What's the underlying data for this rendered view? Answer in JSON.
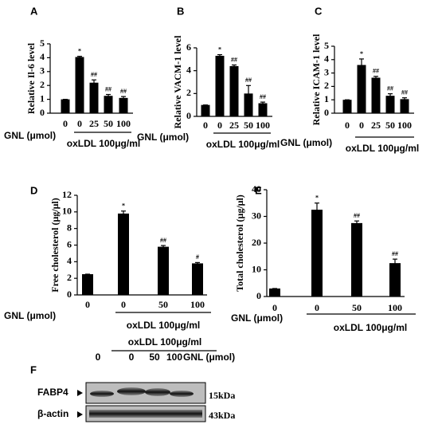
{
  "chart_data": [
    {
      "type": "bar",
      "panel": "A",
      "y_label": "Relative Il-6 level",
      "group_label": "GNL (μmol)",
      "treatment_label": "oxLDL 100μg/ml",
      "categories": [
        "0",
        "0",
        "25",
        "50",
        "100"
      ],
      "values": [
        1,
        4.05,
        2.2,
        1.25,
        1.1
      ],
      "errors": [
        0,
        0.05,
        0.2,
        0.1,
        0.1
      ],
      "markers": [
        null,
        "*",
        "##",
        "##",
        "##"
      ],
      "color": "#000000",
      "ylim": [
        0,
        5
      ],
      "yticks": [
        0,
        1,
        2,
        3,
        4,
        5
      ]
    },
    {
      "type": "bar",
      "panel": "B",
      "y_label": "Relative VACM-1 level",
      "group_label": "GNL (μmol)",
      "treatment_label": "oxLDL 100μg/ml",
      "categories": [
        "0",
        "0",
        "25",
        "50",
        "100"
      ],
      "values": [
        1,
        5.3,
        4.4,
        2.0,
        1.15
      ],
      "errors": [
        0,
        0.1,
        0.1,
        0.7,
        0.1
      ],
      "markers": [
        null,
        "*",
        "##",
        "##",
        "##"
      ],
      "color": "#000000",
      "ylim": [
        0,
        6
      ],
      "yticks": [
        0,
        2,
        4,
        6
      ]
    },
    {
      "type": "bar",
      "panel": "C",
      "y_label": "Relative ICAM-1 level",
      "group_label": "GNL (μmol)",
      "treatment_label": "oxLDL 100μg/ml",
      "categories": [
        "0",
        "0",
        "25",
        "50",
        "100"
      ],
      "values": [
        1,
        3.6,
        2.65,
        1.3,
        1.05
      ],
      "errors": [
        0,
        0.45,
        0.1,
        0.15,
        0.1
      ],
      "markers": [
        null,
        "*",
        "##",
        "##",
        "##"
      ],
      "color": "#000000",
      "ylim": [
        0,
        5
      ],
      "yticks": [
        0,
        1,
        2,
        3,
        4,
        5
      ]
    },
    {
      "type": "bar",
      "panel": "D",
      "y_label": "Free cholesterol  (μg/μl)",
      "group_label": "GNL (μmol)",
      "treatment_label": "oxLDL 100μg/ml",
      "categories": [
        "0",
        "0",
        "50",
        "100"
      ],
      "values": [
        2.5,
        9.8,
        5.8,
        3.8
      ],
      "errors": [
        0,
        0.3,
        0.15,
        0.1
      ],
      "markers": [
        null,
        "*",
        "##",
        "#"
      ],
      "color": "#000000",
      "ylim": [
        0,
        12
      ],
      "yticks": [
        0,
        2,
        4,
        6,
        8,
        10,
        12
      ]
    },
    {
      "type": "bar",
      "panel": "E",
      "y_label": "Total cholesterol  (μg/μl)",
      "group_label": "GNL (μmol)",
      "treatment_label": "oxLDL 100μg/ml",
      "categories": [
        "0",
        "0",
        "50",
        "100"
      ],
      "values": [
        3,
        32.5,
        27.5,
        12.5
      ],
      "errors": [
        0,
        2.5,
        0.8,
        1.5
      ],
      "markers": [
        null,
        "*",
        "##",
        "##"
      ],
      "color": "#000000",
      "ylim": [
        0,
        40
      ],
      "yticks": [
        0,
        10,
        20,
        30,
        40
      ]
    }
  ],
  "blot": {
    "panel": "F",
    "title": "oxLDL 100μg/ml",
    "lanes": [
      "0",
      "0",
      "50",
      "100"
    ],
    "lane_label": "GNL (μmol)",
    "rows": [
      {
        "name": "FABP4",
        "size": "15kDa"
      },
      {
        "name": "β-actin",
        "size": "43kDa"
      }
    ]
  }
}
